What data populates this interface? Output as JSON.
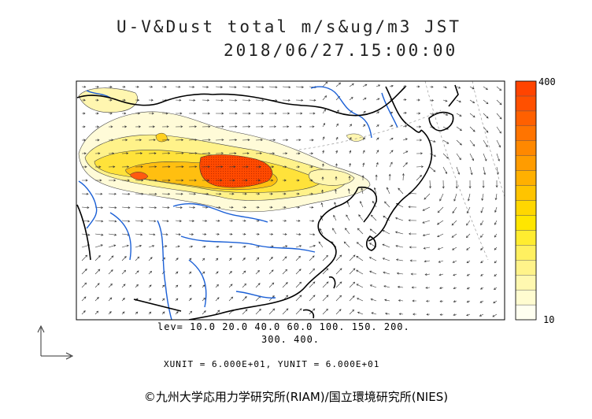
{
  "header": {
    "title_line1": "U-V&Dust total m/s&ug/m3 JST",
    "title_line2": "2018/06/27.15:00:00"
  },
  "legend": {
    "lev_line1": "lev= 10.0 20.0 40.0 60.0 100. 150. 200.",
    "lev_line2": "300. 400.",
    "units": "XUNIT = 6.000E+01, YUNIT = 6.000E+01"
  },
  "colorbar": {
    "max_label": "400",
    "min_label": "10",
    "colors": [
      "#fffff0",
      "#fffcd0",
      "#fff8b0",
      "#fff38a",
      "#fff060",
      "#ffec30",
      "#ffe600",
      "#ffd700",
      "#ffc400",
      "#ffb000",
      "#ff9c00",
      "#ff8800",
      "#ff7400",
      "#ff6000",
      "#ff5000",
      "#ff4400"
    ]
  },
  "footer": {
    "copyright": "©九州大学応用力学研究所(RIAM)/国立環境研究所(NIES)"
  },
  "colors": {
    "coast": "#000000",
    "river": "#1a5fd6",
    "arrow": "#333333",
    "grid": "#999999"
  }
}
